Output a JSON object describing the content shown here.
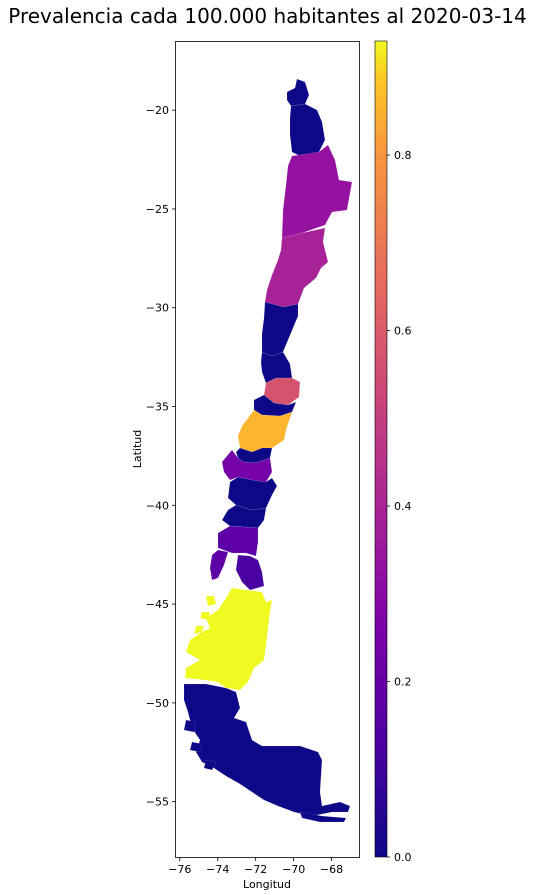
{
  "chart_data": {
    "type": "choropleth map",
    "title": "Prevalencia cada 100.000 habitantes al 2020-03-14",
    "xlabel": "Longitud",
    "ylabel": "Latitud",
    "xlim": [
      -76.2,
      -66.5
    ],
    "ylim": [
      -57.8,
      -16.5
    ],
    "x_ticks": [
      "−76",
      "−74",
      "−72",
      "−70",
      "−68"
    ],
    "y_ticks": [
      "−20",
      "−25",
      "−30",
      "−35",
      "−40",
      "−45",
      "−50",
      "−55"
    ],
    "x_tick_values": [
      -76,
      -74,
      -72,
      -70,
      -68
    ],
    "y_tick_values": [
      -20,
      -25,
      -30,
      -35,
      -40,
      -45,
      -50,
      -55
    ],
    "colorbar": {
      "colormap": "plasma",
      "range": [
        0.0,
        0.93
      ],
      "tick_labels": [
        "0.0",
        "0.2",
        "0.4",
        "0.6",
        "0.8"
      ],
      "tick_values": [
        0.0,
        0.2,
        0.4,
        0.6,
        0.8
      ]
    },
    "regions": [
      {
        "value": 0.0,
        "color": "#0d0887"
      },
      {
        "value": 0.0,
        "color": "#0d0887"
      },
      {
        "value": 0.27,
        "color": "#9512a1"
      },
      {
        "value": 0.31,
        "color": "#a72197"
      },
      {
        "value": 0.0,
        "color": "#0d0887"
      },
      {
        "value": 0.0,
        "color": "#0d0887"
      },
      {
        "value": 0.0,
        "color": "#0d0887"
      },
      {
        "value": 0.49,
        "color": "#d5536f"
      },
      {
        "value": 0.0,
        "color": "#0d0887"
      },
      {
        "value": 0.81,
        "color": "#fdb52e"
      },
      {
        "value": 0.22,
        "color": "#7601a8"
      },
      {
        "value": 0.0,
        "color": "#0d0887"
      },
      {
        "value": 0.0,
        "color": "#0d0887"
      },
      {
        "value": 0.18,
        "color": "#5c01a6"
      },
      {
        "value": 0.13,
        "color": "#4903a0"
      },
      {
        "value": 0.93,
        "color": "#f0f921"
      },
      {
        "value": 0.0,
        "color": "#0d0887"
      }
    ]
  }
}
